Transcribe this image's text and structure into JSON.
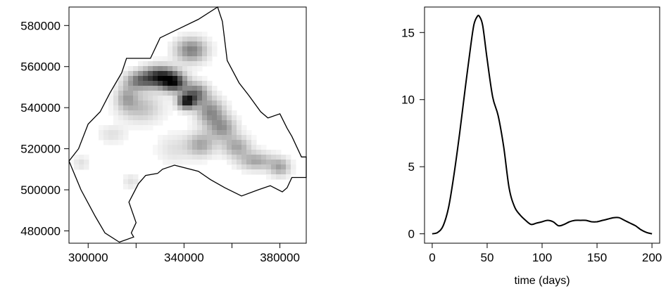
{
  "chart_data": [
    {
      "type": "heatmap",
      "title": "",
      "xlabel": "",
      "ylabel": "",
      "xlim": [
        292000,
        391000
      ],
      "ylim": [
        474000,
        589000
      ],
      "x_ticks": [
        300000,
        340000,
        380000
      ],
      "x_tick_labels": [
        "300000",
        "340000",
        "380000"
      ],
      "x_minor_ticks": [
        320000,
        360000
      ],
      "y_ticks": [
        480000,
        500000,
        520000,
        540000,
        560000,
        580000
      ],
      "y_tick_labels": [
        "480000",
        "500000",
        "520000",
        "540000",
        "560000",
        "580000"
      ],
      "color_scale": [
        "#ffffff",
        "#000000"
      ],
      "region_boundary": [
        [
          313000,
          474500
        ],
        [
          307000,
          479000
        ],
        [
          303000,
          487000
        ],
        [
          297000,
          500000
        ],
        [
          292000,
          514000
        ],
        [
          296000,
          520000
        ],
        [
          300000,
          532000
        ],
        [
          305000,
          538000
        ],
        [
          309000,
          547000
        ],
        [
          314000,
          557000
        ],
        [
          316000,
          564000
        ],
        [
          326000,
          564000
        ],
        [
          330000,
          574000
        ],
        [
          346000,
          583000
        ],
        [
          354000,
          589000
        ],
        [
          356000,
          582000
        ],
        [
          358000,
          563000
        ],
        [
          363000,
          552000
        ],
        [
          367000,
          546000
        ],
        [
          372000,
          538000
        ],
        [
          375000,
          535000
        ],
        [
          380000,
          537000
        ],
        [
          383000,
          530000
        ],
        [
          385000,
          526000
        ],
        [
          389000,
          516000
        ],
        [
          391000,
          516000
        ],
        [
          391000,
          506000
        ],
        [
          385000,
          506000
        ],
        [
          383000,
          501000
        ],
        [
          381000,
          499000
        ],
        [
          376000,
          502000
        ],
        [
          371000,
          500000
        ],
        [
          364000,
          497000
        ],
        [
          357000,
          501000
        ],
        [
          351000,
          505000
        ],
        [
          346000,
          509000
        ],
        [
          336000,
          512000
        ],
        [
          331000,
          510000
        ],
        [
          329000,
          508000
        ],
        [
          324000,
          507000
        ],
        [
          321000,
          503000
        ],
        [
          317000,
          494000
        ],
        [
          320000,
          484000
        ],
        [
          318000,
          479000
        ],
        [
          319000,
          477000
        ],
        [
          313000,
          474500
        ]
      ],
      "intensity_blobs": [
        {
          "x": 321000,
          "y": 553000,
          "sx": 4000,
          "sy": 3000,
          "w": 0.45
        },
        {
          "x": 330000,
          "y": 555000,
          "sx": 5000,
          "sy": 3500,
          "w": 0.85
        },
        {
          "x": 336000,
          "y": 552000,
          "sx": 3500,
          "sy": 3000,
          "w": 0.7
        },
        {
          "x": 341000,
          "y": 543000,
          "sx": 2500,
          "sy": 2500,
          "w": 0.85
        },
        {
          "x": 345000,
          "y": 547000,
          "sx": 3500,
          "sy": 3500,
          "w": 0.55
        },
        {
          "x": 343000,
          "y": 568000,
          "sx": 4500,
          "sy": 4000,
          "w": 0.5
        },
        {
          "x": 351000,
          "y": 538000,
          "sx": 4000,
          "sy": 4500,
          "w": 0.45
        },
        {
          "x": 356000,
          "y": 530000,
          "sx": 4000,
          "sy": 4000,
          "w": 0.4
        },
        {
          "x": 347000,
          "y": 522000,
          "sx": 4000,
          "sy": 4000,
          "w": 0.35
        },
        {
          "x": 362000,
          "y": 521000,
          "sx": 4000,
          "sy": 3500,
          "w": 0.35
        },
        {
          "x": 370000,
          "y": 514000,
          "sx": 5000,
          "sy": 3000,
          "w": 0.35
        },
        {
          "x": 380000,
          "y": 511000,
          "sx": 3000,
          "sy": 3000,
          "w": 0.35
        },
        {
          "x": 322000,
          "y": 540000,
          "sx": 6000,
          "sy": 5000,
          "w": 0.25
        },
        {
          "x": 316000,
          "y": 545000,
          "sx": 3000,
          "sy": 4000,
          "w": 0.3
        },
        {
          "x": 310000,
          "y": 527000,
          "sx": 4000,
          "sy": 3000,
          "w": 0.12
        },
        {
          "x": 297000,
          "y": 513000,
          "sx": 2500,
          "sy": 2500,
          "w": 0.12
        },
        {
          "x": 318000,
          "y": 504000,
          "sx": 2500,
          "sy": 2500,
          "w": 0.12
        },
        {
          "x": 336000,
          "y": 520000,
          "sx": 5000,
          "sy": 5000,
          "w": 0.12
        }
      ]
    },
    {
      "type": "line",
      "title": "",
      "xlabel": "time (days)",
      "ylabel": "",
      "xlim": [
        -7,
        207
      ],
      "ylim": [
        -0.7,
        16.9
      ],
      "x_ticks": [
        0,
        50,
        100,
        150,
        200
      ],
      "x_tick_labels": [
        "0",
        "50",
        "100",
        "150",
        "200"
      ],
      "y_ticks": [
        0,
        5,
        10,
        15
      ],
      "y_tick_labels": [
        "0",
        "5",
        "10",
        "15"
      ],
      "x": [
        0,
        5,
        10,
        15,
        20,
        25,
        30,
        35,
        38,
        41,
        43,
        46,
        50,
        55,
        60,
        65,
        70,
        75,
        80,
        85,
        90,
        95,
        100,
        105,
        110,
        115,
        120,
        125,
        130,
        135,
        140,
        145,
        150,
        155,
        160,
        165,
        170,
        175,
        180,
        185,
        190,
        195,
        200
      ],
      "y": [
        0.0,
        0.1,
        0.6,
        2.0,
        4.5,
        7.5,
        10.8,
        14.0,
        15.6,
        16.2,
        16.2,
        15.5,
        13.0,
        10.2,
        8.8,
        6.5,
        3.4,
        2.0,
        1.4,
        1.0,
        0.7,
        0.8,
        0.9,
        1.0,
        0.9,
        0.6,
        0.7,
        0.9,
        1.0,
        1.0,
        1.0,
        0.9,
        0.9,
        1.0,
        1.1,
        1.2,
        1.2,
        1.0,
        0.8,
        0.6,
        0.3,
        0.1,
        0.0
      ]
    }
  ]
}
